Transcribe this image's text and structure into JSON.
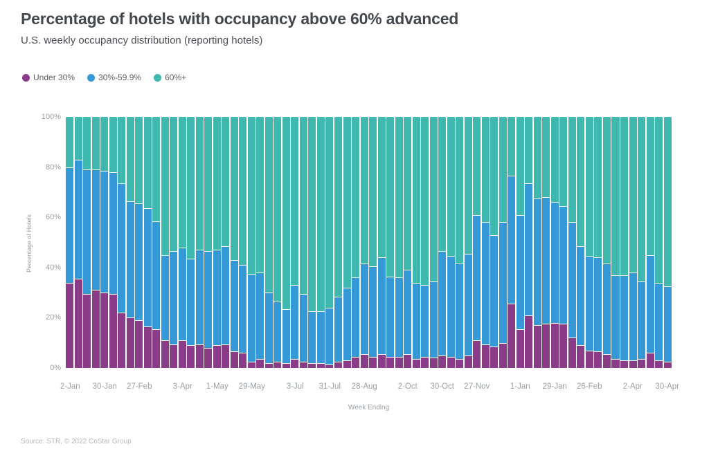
{
  "header": {
    "title": "Percentage of hotels with occupancy above 60% advanced",
    "subtitle": "U.S. weekly occupancy distribution (reporting hotels)"
  },
  "legend": [
    {
      "label": "Under 30%",
      "color": "#8a3c88"
    },
    {
      "label": "30%-59.9%",
      "color": "#3598d7"
    },
    {
      "label": "60%+",
      "color": "#3fb8b0"
    }
  ],
  "footer": {
    "source": "Source: STR, © 2022 CoStar Group"
  },
  "chart_data": {
    "type": "bar",
    "stacked": true,
    "title": "Percentage of hotels with occupancy above 60% advanced",
    "subtitle": "U.S. weekly occupancy distribution (reporting hotels)",
    "xlabel": "Week Ending",
    "ylabel": "Percentage of Hotels",
    "ylim": [
      0,
      100
    ],
    "grid": false,
    "legend_position": "top-left",
    "y_tick_labels": [
      "0%",
      "20%",
      "40%",
      "60%",
      "80%",
      "100%"
    ],
    "n_bars": 70,
    "x_tick_labels": [
      {
        "label": "2-Jan",
        "bar_index": 0
      },
      {
        "label": "30-Jan",
        "bar_index": 4
      },
      {
        "label": "27-Feb",
        "bar_index": 8
      },
      {
        "label": "3-Apr",
        "bar_index": 13
      },
      {
        "label": "1-May",
        "bar_index": 17
      },
      {
        "label": "29-May",
        "bar_index": 21
      },
      {
        "label": "3-Jul",
        "bar_index": 26
      },
      {
        "label": "31-Jul",
        "bar_index": 30
      },
      {
        "label": "28-Aug",
        "bar_index": 34
      },
      {
        "label": "2-Oct",
        "bar_index": 39
      },
      {
        "label": "30-Oct",
        "bar_index": 43
      },
      {
        "label": "27-Nov",
        "bar_index": 47
      },
      {
        "label": "1-Jan",
        "bar_index": 52
      },
      {
        "label": "29-Jan",
        "bar_index": 56
      },
      {
        "label": "26-Feb",
        "bar_index": 60
      },
      {
        "label": "2-Apr",
        "bar_index": 65
      },
      {
        "label": "30-Apr",
        "bar_index": 69
      }
    ],
    "series": [
      {
        "name": "Under 30%",
        "color": "#8a3c88",
        "values": [
          34,
          35.5,
          29.5,
          31,
          30,
          29.5,
          22,
          20,
          19,
          16.5,
          15.5,
          11,
          9.5,
          11,
          9,
          9.5,
          8,
          9,
          9.5,
          6.5,
          6,
          2.5,
          3.5,
          2,
          2.5,
          2,
          3.5,
          2.5,
          2,
          2,
          1.5,
          2.5,
          3,
          4.5,
          5.5,
          4.5,
          5.5,
          4.5,
          4.5,
          5.5,
          3.5,
          4.5,
          4,
          5,
          4.5,
          3.5,
          5,
          11,
          9.5,
          8.5,
          10,
          25.5,
          15.5,
          21,
          17,
          17.5,
          18,
          17.5,
          12,
          9,
          7,
          6.5,
          5.5,
          3.5,
          3,
          3,
          3.5,
          6,
          3,
          2.5
        ]
      },
      {
        "name": "30%-59.9%",
        "color": "#3598d7",
        "values": [
          46,
          47.5,
          49.5,
          48,
          48.5,
          48.5,
          51.5,
          46.5,
          46.5,
          47,
          43,
          34,
          37,
          37,
          34.5,
          37.5,
          38.5,
          38,
          39,
          36.5,
          35,
          35,
          34.5,
          28,
          24,
          21.5,
          29.5,
          27,
          20.5,
          20.5,
          22.5,
          26,
          29,
          31.5,
          36,
          36,
          38.5,
          32,
          31.5,
          33.5,
          30.5,
          28.5,
          30.5,
          41.5,
          40,
          38.5,
          40.5,
          50,
          48.5,
          44.5,
          48,
          51,
          45.5,
          52.5,
          50.5,
          50.5,
          48,
          47,
          46,
          39.5,
          37.5,
          37.5,
          36,
          33.5,
          34,
          35,
          31,
          39,
          31,
          30
        ]
      },
      {
        "name": "60%+",
        "color": "#3fb8b0",
        "values": [
          20,
          17,
          21,
          21,
          21.5,
          22,
          26.5,
          33.5,
          34.5,
          36.5,
          41.5,
          55,
          53.5,
          52,
          56.5,
          53,
          53.5,
          53,
          51.5,
          57,
          59,
          62.5,
          62,
          70,
          73.5,
          76.5,
          67,
          70.5,
          77.5,
          77.5,
          76,
          71.5,
          68,
          64,
          58.5,
          59.5,
          56,
          63.5,
          64,
          61,
          66,
          67,
          65.5,
          53.5,
          55.5,
          58,
          54.5,
          39,
          42,
          47,
          42,
          23.5,
          39,
          26.5,
          32.5,
          32,
          34,
          35.5,
          42,
          51.5,
          55.5,
          56,
          58.5,
          63,
          63,
          62,
          65.5,
          55,
          66,
          67.5
        ]
      }
    ]
  }
}
